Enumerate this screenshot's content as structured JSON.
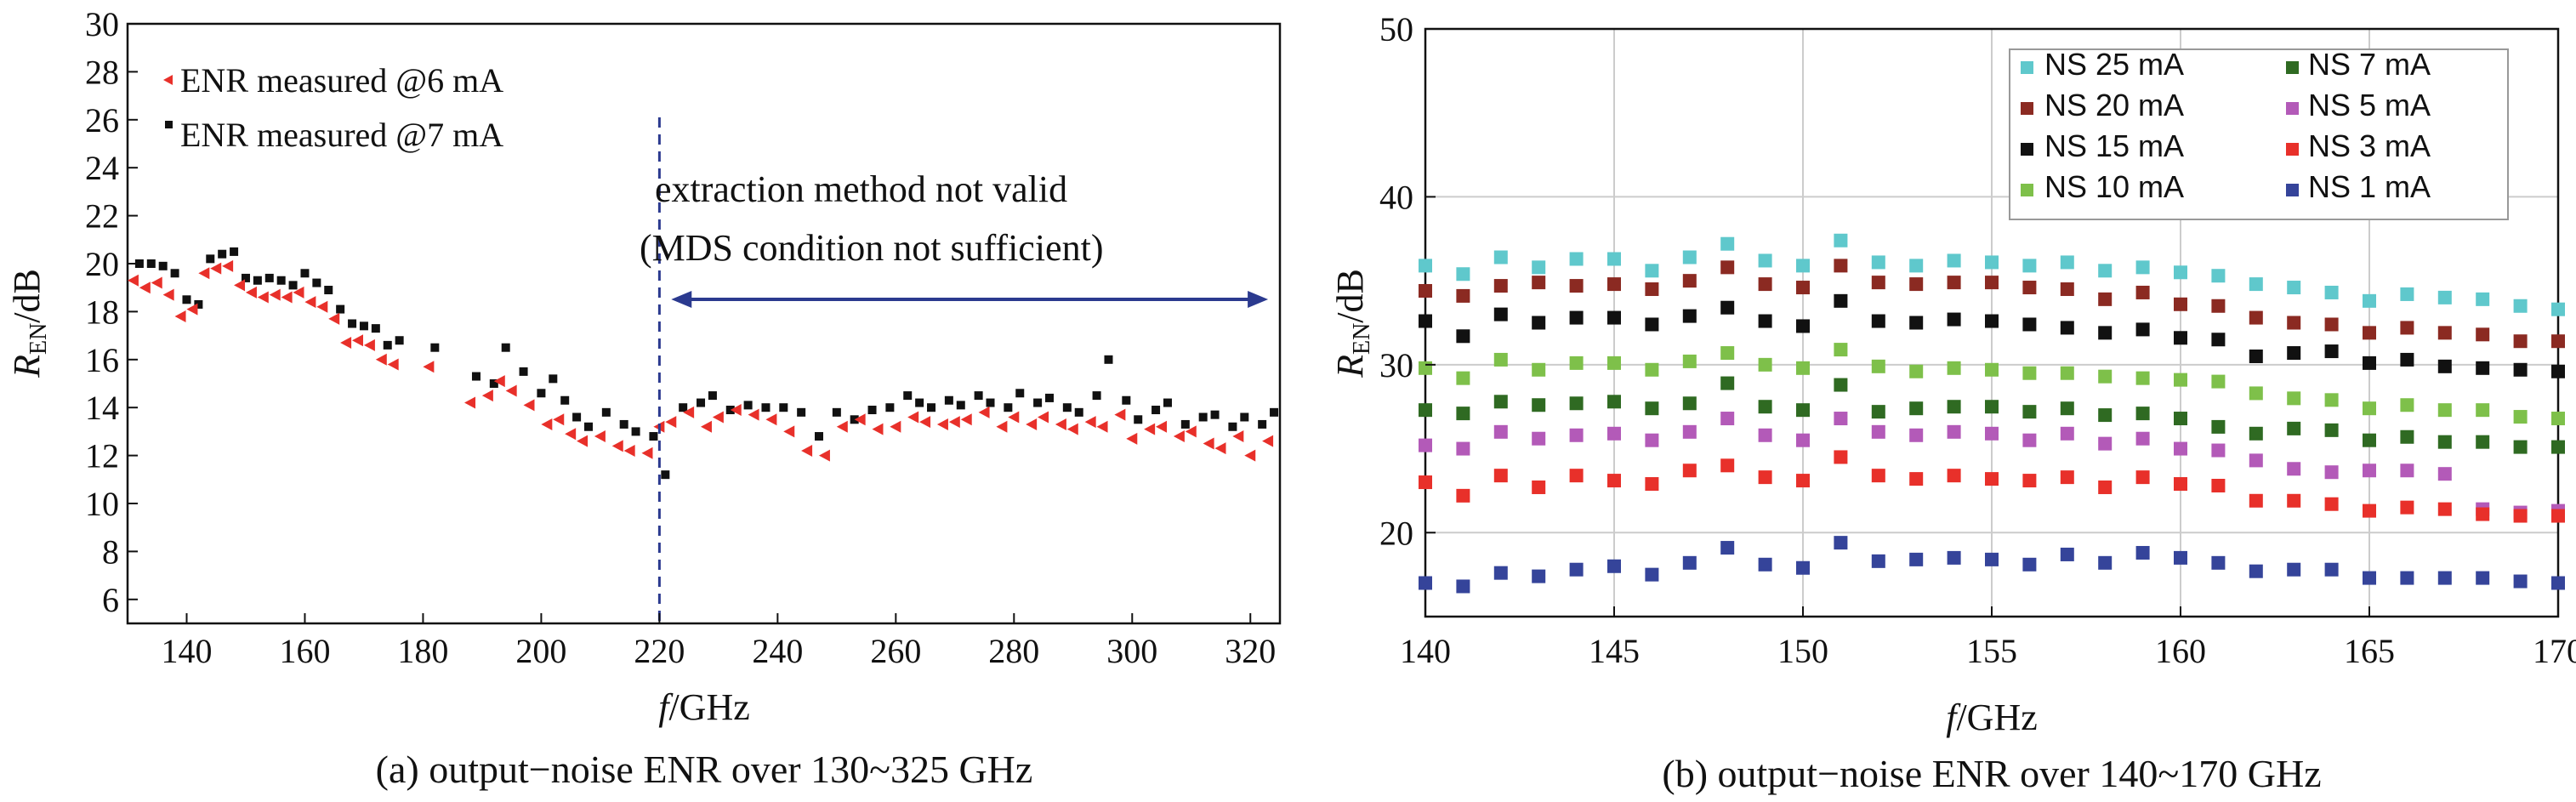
{
  "chart_data": [
    {
      "type": "scatter",
      "caption": "(a) output−noise ENR over 130~325 GHz",
      "xlabel_italic": "f",
      "xlabel_rest": "/GHz",
      "ylabel_main": "R",
      "ylabel_sub": "EN",
      "ylabel_rest": "/dB",
      "xlim": [
        130,
        325
      ],
      "ylim": [
        5,
        30
      ],
      "xticks": [
        140,
        160,
        180,
        200,
        220,
        240,
        260,
        280,
        300,
        320
      ],
      "yticks": [
        6,
        8,
        10,
        12,
        14,
        16,
        18,
        20,
        22,
        24,
        26,
        28,
        30
      ],
      "legend": [
        {
          "label": "ENR measured @6 mA",
          "color": "#e8302a"
        },
        {
          "label": "ENR measured @7 mA",
          "color": "#111111"
        }
      ],
      "annotation_line1": "extraction method not valid",
      "annotation_line2": "(MDS condition not sufficient)",
      "boundary_x": 220,
      "arrow_range": [
        222,
        323
      ],
      "series": [
        {
          "name": "ENR measured @6 mA",
          "color": "#e8302a",
          "x": [
            131,
            133,
            135,
            137,
            139,
            141,
            143,
            145,
            147,
            149,
            151,
            153,
            155,
            157,
            159,
            161,
            163,
            165,
            167,
            169,
            171,
            173,
            175,
            181,
            188,
            191,
            193,
            195,
            198,
            201,
            203,
            205,
            207,
            210,
            213,
            215,
            218,
            220,
            222,
            225,
            228,
            230,
            233,
            236,
            239,
            242,
            245,
            248,
            251,
            254,
            257,
            260,
            263,
            265,
            268,
            270,
            272,
            275,
            278,
            280,
            283,
            285,
            288,
            290,
            293,
            295,
            298,
            300,
            303,
            305,
            308,
            310,
            313,
            315,
            318,
            320,
            323
          ],
          "y": [
            19.3,
            19.0,
            19.2,
            18.7,
            17.8,
            18.1,
            19.6,
            19.8,
            19.9,
            19.1,
            18.8,
            18.6,
            18.7,
            18.6,
            18.8,
            18.4,
            18.2,
            17.7,
            16.7,
            16.8,
            16.6,
            16.0,
            15.8,
            15.7,
            14.2,
            14.5,
            15.1,
            14.7,
            14.1,
            13.3,
            13.5,
            12.9,
            12.6,
            12.8,
            12.4,
            12.2,
            12.1,
            13.2,
            13.4,
            13.8,
            13.2,
            13.6,
            13.9,
            13.7,
            13.5,
            13.0,
            12.2,
            12.0,
            13.2,
            13.5,
            13.1,
            13.2,
            13.6,
            13.4,
            13.3,
            13.4,
            13.5,
            13.8,
            13.2,
            13.6,
            13.3,
            13.6,
            13.3,
            13.1,
            13.4,
            13.2,
            13.7,
            12.7,
            13.1,
            13.2,
            12.8,
            13.0,
            12.5,
            12.3,
            12.8,
            12.0,
            12.6
          ]
        },
        {
          "name": "ENR measured @7 mA",
          "color": "#111111",
          "x": [
            132,
            134,
            136,
            138,
            140,
            142,
            144,
            146,
            148,
            150,
            152,
            154,
            156,
            158,
            160,
            162,
            164,
            166,
            168,
            170,
            172,
            174,
            176,
            182,
            189,
            192,
            194,
            197,
            200,
            202,
            204,
            206,
            208,
            211,
            214,
            216,
            219,
            221,
            224,
            227,
            229,
            232,
            235,
            238,
            241,
            244,
            247,
            250,
            253,
            256,
            259,
            262,
            264,
            266,
            269,
            271,
            274,
            276,
            279,
            281,
            284,
            286,
            289,
            291,
            294,
            296,
            299,
            301,
            304,
            306,
            309,
            312,
            314,
            317,
            319,
            322,
            324
          ],
          "y": [
            20.0,
            20.0,
            19.9,
            19.6,
            18.5,
            18.3,
            20.2,
            20.4,
            20.5,
            19.4,
            19.3,
            19.4,
            19.3,
            19.1,
            19.6,
            19.2,
            18.9,
            18.1,
            17.5,
            17.4,
            17.3,
            16.6,
            16.8,
            16.5,
            15.3,
            15.0,
            16.5,
            15.5,
            14.6,
            15.2,
            14.3,
            13.6,
            13.2,
            13.8,
            13.3,
            13.0,
            12.8,
            11.2,
            14.0,
            14.2,
            14.5,
            13.9,
            14.1,
            14.0,
            14.0,
            13.8,
            12.8,
            13.8,
            13.5,
            13.9,
            14.0,
            14.5,
            14.2,
            14.0,
            14.3,
            14.1,
            14.5,
            14.2,
            14.0,
            14.6,
            14.2,
            14.4,
            14.0,
            13.8,
            14.5,
            16.0,
            14.3,
            13.5,
            13.9,
            14.2,
            13.3,
            13.6,
            13.7,
            13.2,
            13.6,
            13.3,
            13.8
          ]
        }
      ]
    },
    {
      "type": "scatter",
      "caption": "(b) output−noise ENR over 140~170 GHz",
      "xlabel_italic": "f",
      "xlabel_rest": "/GHz",
      "ylabel_main": "R",
      "ylabel_sub": "EN",
      "ylabel_rest": "/dB",
      "xlim": [
        140,
        170
      ],
      "ylim": [
        15,
        50
      ],
      "xticks": [
        140,
        145,
        150,
        155,
        160,
        165,
        170
      ],
      "yticks": [
        20,
        30,
        40,
        50
      ],
      "grid": true,
      "legend_placement": "top-right",
      "x": [
        140,
        141,
        142,
        143,
        144,
        145,
        146,
        147,
        148,
        149,
        150,
        151,
        152,
        153,
        154,
        155,
        156,
        157,
        158,
        159,
        160,
        161,
        162,
        163,
        164,
        165,
        166,
        167,
        168,
        169,
        170
      ],
      "series": [
        {
          "name": "NS 25 mA",
          "color": "#5fc8cc",
          "values": [
            35.9,
            35.4,
            36.4,
            35.8,
            36.3,
            36.3,
            35.6,
            36.4,
            37.2,
            36.2,
            35.9,
            37.4,
            36.1,
            35.9,
            36.2,
            36.1,
            35.9,
            36.1,
            35.6,
            35.8,
            35.5,
            35.3,
            34.8,
            34.6,
            34.3,
            33.8,
            34.2,
            34.0,
            33.9,
            33.5,
            33.3
          ]
        },
        {
          "name": "NS 20 mA",
          "color": "#8b2a22",
          "values": [
            34.4,
            34.1,
            34.7,
            34.9,
            34.7,
            34.8,
            34.5,
            35.0,
            35.8,
            34.8,
            34.6,
            35.9,
            34.9,
            34.8,
            34.9,
            34.9,
            34.6,
            34.5,
            33.9,
            34.3,
            33.6,
            33.5,
            32.8,
            32.5,
            32.4,
            31.9,
            32.2,
            31.9,
            31.8,
            31.4,
            31.4
          ]
        },
        {
          "name": "NS 15 mA",
          "color": "#111111",
          "values": [
            32.6,
            31.7,
            33.0,
            32.5,
            32.8,
            32.8,
            32.4,
            32.9,
            33.4,
            32.6,
            32.3,
            33.8,
            32.6,
            32.5,
            32.7,
            32.6,
            32.4,
            32.2,
            31.9,
            32.1,
            31.6,
            31.5,
            30.5,
            30.7,
            30.8,
            30.1,
            30.3,
            29.9,
            29.8,
            29.7,
            29.6
          ]
        },
        {
          "name": "NS 10 mA",
          "color": "#7ec04a",
          "values": [
            29.8,
            29.2,
            30.3,
            29.7,
            30.1,
            30.1,
            29.7,
            30.2,
            30.7,
            30.0,
            29.8,
            30.9,
            29.9,
            29.6,
            29.8,
            29.7,
            29.5,
            29.5,
            29.3,
            29.2,
            29.1,
            29.0,
            28.3,
            28.0,
            27.9,
            27.4,
            27.6,
            27.3,
            27.3,
            26.9,
            26.8
          ]
        },
        {
          "name": "NS 7 mA",
          "color": "#2f6a22",
          "values": [
            27.3,
            27.1,
            27.8,
            27.6,
            27.7,
            27.8,
            27.4,
            27.7,
            28.9,
            27.5,
            27.3,
            28.8,
            27.2,
            27.4,
            27.5,
            27.5,
            27.2,
            27.4,
            27.0,
            27.1,
            26.8,
            26.3,
            25.9,
            26.2,
            26.1,
            25.5,
            25.7,
            25.4,
            25.4,
            25.1,
            25.1
          ]
        },
        {
          "name": "NS 5 mA",
          "color": "#b35ab8",
          "values": [
            25.2,
            25.0,
            26.0,
            25.6,
            25.8,
            25.9,
            25.5,
            26.0,
            26.8,
            25.8,
            25.5,
            26.8,
            26.0,
            25.8,
            26.0,
            25.9,
            25.5,
            25.9,
            25.3,
            25.6,
            25.0,
            24.9,
            24.3,
            23.8,
            23.6,
            23.7,
            23.7,
            23.5,
            21.4,
            21.2,
            21.3
          ]
        },
        {
          "name": "NS 3 mA",
          "color": "#e8302a",
          "values": [
            23.0,
            22.2,
            23.4,
            22.7,
            23.4,
            23.1,
            22.9,
            23.7,
            24.0,
            23.3,
            23.1,
            24.5,
            23.4,
            23.2,
            23.4,
            23.2,
            23.1,
            23.3,
            22.7,
            23.3,
            22.9,
            22.8,
            21.9,
            21.9,
            21.7,
            21.3,
            21.5,
            21.4,
            21.1,
            21.0,
            21.0
          ]
        },
        {
          "name": "NS 1 mA",
          "color": "#35449a",
          "values": [
            17.0,
            16.8,
            17.6,
            17.4,
            17.8,
            18.0,
            17.5,
            18.2,
            19.1,
            18.1,
            17.9,
            19.4,
            18.3,
            18.4,
            18.5,
            18.4,
            18.1,
            18.7,
            18.2,
            18.8,
            18.5,
            18.2,
            17.7,
            17.8,
            17.8,
            17.3,
            17.3,
            17.3,
            17.3,
            17.1,
            17.0
          ]
        }
      ]
    }
  ]
}
